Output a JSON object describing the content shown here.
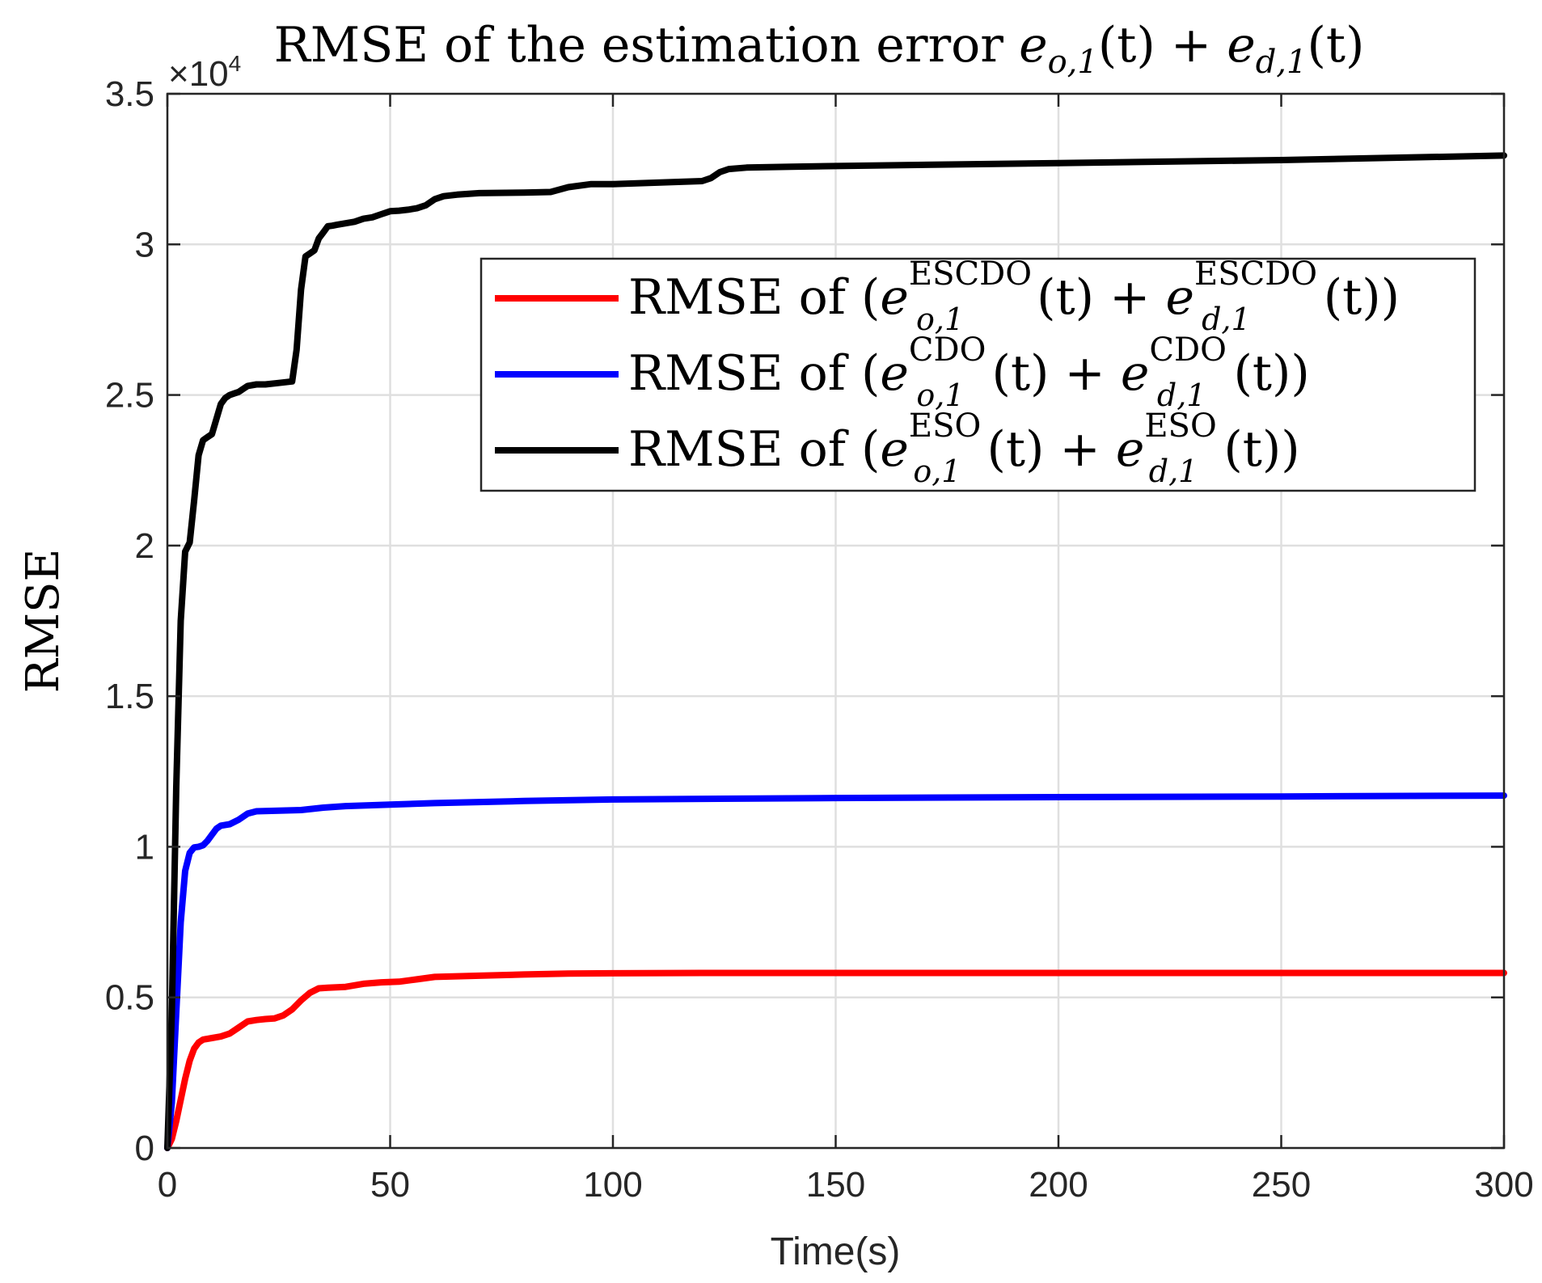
{
  "chart_data": {
    "type": "line",
    "title": "RMSE of the estimation error e_{o,1}(t) + e_{d,1}(t)",
    "title_parts": {
      "prefix": "RMSE of the estimation error ",
      "var1": "e",
      "var1_sub": "o,1",
      "arg1": "(t)",
      "plus": " + ",
      "var2": "e",
      "var2_sub": "d,1",
      "arg2": "(t)"
    },
    "xlabel": "Time(s)",
    "ylabel": "RMSE",
    "y_exponent_label": "×10",
    "y_exponent_power": "4",
    "xlim": [
      0,
      300
    ],
    "ylim": [
      0,
      35000
    ],
    "x_ticks": [
      0,
      50,
      100,
      150,
      200,
      250,
      300
    ],
    "y_ticks": [
      0,
      5000,
      10000,
      15000,
      20000,
      25000,
      30000,
      35000
    ],
    "y_tick_labels": [
      "0",
      "0.5",
      "1",
      "1.5",
      "2",
      "2.5",
      "3",
      "3.5"
    ],
    "grid": true,
    "legend_position": "top-right",
    "series": [
      {
        "name": "RMSE of (e_{o,1}^{ESCDO}(t) + e_{d,1}^{ESCDO}(t))",
        "legend_parts": {
          "prefix": "RMSE of (",
          "var": "e",
          "sub1": "o,1",
          "sub2": "d,1",
          "sup": "ESCDO",
          "arg": "(t)",
          "plus": " + ",
          "close": ")"
        },
        "color": "#ff0000",
        "x": [
          0,
          1,
          2,
          3,
          4,
          5,
          6,
          7,
          8,
          10,
          12,
          14,
          16,
          18,
          20,
          22,
          24,
          26,
          28,
          30,
          32,
          34,
          36,
          40,
          44,
          48,
          52,
          56,
          60,
          70,
          80,
          90,
          100,
          120,
          150,
          200,
          250,
          300
        ],
        "y": [
          0,
          300,
          900,
          1600,
          2300,
          2900,
          3300,
          3500,
          3600,
          3650,
          3700,
          3800,
          4000,
          4200,
          4250,
          4280,
          4300,
          4400,
          4600,
          4900,
          5150,
          5300,
          5320,
          5350,
          5450,
          5500,
          5520,
          5600,
          5680,
          5720,
          5760,
          5790,
          5800,
          5810,
          5810,
          5810,
          5810,
          5810
        ]
      },
      {
        "name": "RMSE of (e_{o,1}^{CDO}(t) + e_{d,1}^{CDO}(t))",
        "legend_parts": {
          "prefix": "RMSE of (",
          "var": "e",
          "sub1": "o,1",
          "sub2": "d,1",
          "sup": "CDO",
          "arg": "(t)",
          "plus": " + ",
          "close": ")"
        },
        "color": "#0000ff",
        "x": [
          0,
          1,
          2,
          3,
          4,
          5,
          6,
          7,
          8,
          9,
          10,
          11,
          12,
          14,
          16,
          18,
          20,
          25,
          30,
          35,
          40,
          50,
          60,
          80,
          100,
          150,
          200,
          250,
          300
        ],
        "y": [
          0,
          1500,
          4500,
          7500,
          9200,
          9800,
          9980,
          10000,
          10050,
          10200,
          10400,
          10600,
          10700,
          10750,
          10900,
          11100,
          11180,
          11200,
          11220,
          11300,
          11350,
          11400,
          11450,
          11520,
          11570,
          11620,
          11650,
          11670,
          11700
        ]
      },
      {
        "name": "RMSE of (e_{o,1}^{ESO}(t) + e_{d,1}^{ESO}(t))",
        "legend_parts": {
          "prefix": "RMSE of (",
          "var": "e",
          "sub1": "o,1",
          "sub2": "d,1",
          "sup": "ESO",
          "arg": "(t)",
          "plus": " + ",
          "close": ")"
        },
        "color": "#000000",
        "x": [
          0,
          1,
          2,
          3,
          4,
          5,
          6,
          7,
          8,
          9,
          10,
          11,
          12,
          13,
          14,
          15,
          16,
          17,
          18,
          20,
          22,
          25,
          28,
          29,
          30,
          31,
          32,
          33,
          34,
          35,
          36,
          37,
          38,
          40,
          42,
          44,
          46,
          48,
          50,
          52,
          54,
          56,
          58,
          60,
          62,
          65,
          70,
          80,
          86,
          90,
          95,
          100,
          110,
          120,
          122,
          124,
          126,
          130,
          140,
          150,
          200,
          250,
          300
        ],
        "y": [
          0,
          4500,
          12000,
          17500,
          19800,
          20100,
          21500,
          23000,
          23500,
          23600,
          23700,
          24200,
          24700,
          24900,
          25000,
          25050,
          25100,
          25200,
          25300,
          25350,
          25350,
          25400,
          25450,
          26500,
          28500,
          29600,
          29700,
          29800,
          30200,
          30400,
          30600,
          30620,
          30650,
          30700,
          30750,
          30850,
          30900,
          31000,
          31100,
          31120,
          31150,
          31200,
          31300,
          31500,
          31600,
          31650,
          31700,
          31720,
          31740,
          31900,
          32000,
          32000,
          32050,
          32100,
          32200,
          32400,
          32500,
          32550,
          32580,
          32600,
          32700,
          32800,
          32950
        ]
      }
    ]
  }
}
